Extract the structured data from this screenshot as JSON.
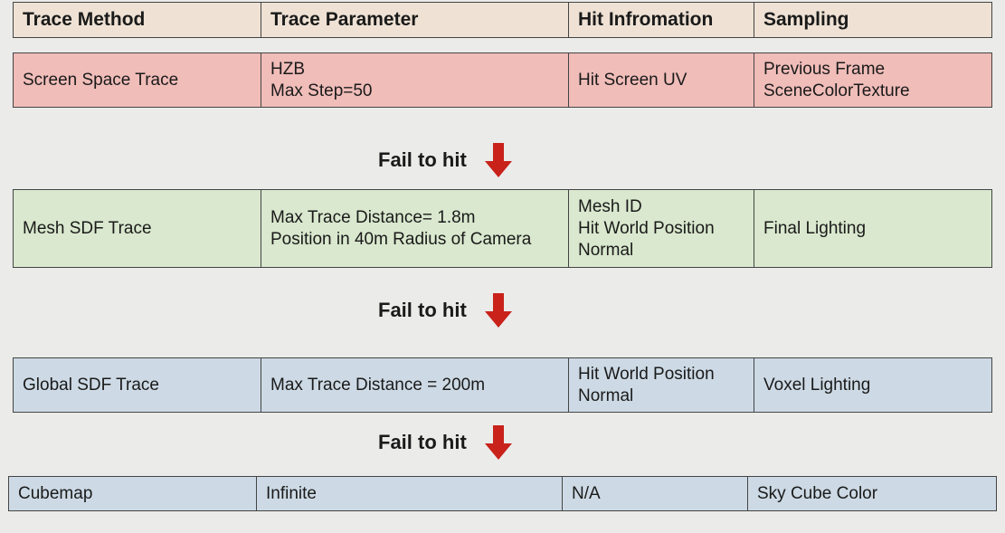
{
  "colors": {
    "header": "#efe2d4",
    "screen": "#f0bdb9",
    "mesh": "#d9e8ce",
    "global": "#cddae5",
    "cubemap": "#cddae5",
    "arrow": "#c8221a"
  },
  "header": [
    "Trace Method",
    "Trace Parameter",
    "Hit Infromation",
    "Sampling"
  ],
  "rows": [
    {
      "cells": [
        [
          "Screen Space Trace"
        ],
        [
          "HZB",
          "Max Step=50"
        ],
        [
          "Hit Screen UV"
        ],
        [
          "Previous Frame",
          "SceneColorTexture"
        ]
      ]
    },
    {
      "cells": [
        [
          "Mesh SDF Trace"
        ],
        [
          "Max Trace Distance= 1.8m",
          "Position in 40m Radius of Camera"
        ],
        [
          "Mesh ID",
          "Hit World Position",
          "Normal"
        ],
        [
          "Final Lighting"
        ]
      ]
    },
    {
      "cells": [
        [
          "Global SDF Trace"
        ],
        [
          "Max Trace Distance = 200m"
        ],
        [
          "Hit World Position",
          "Normal"
        ],
        [
          "Voxel Lighting"
        ]
      ]
    },
    {
      "cells": [
        [
          "Cubemap"
        ],
        [
          "Infinite"
        ],
        [
          "N/A"
        ],
        [
          "Sky Cube Color"
        ]
      ]
    }
  ],
  "fail_label": "Fail to hit"
}
